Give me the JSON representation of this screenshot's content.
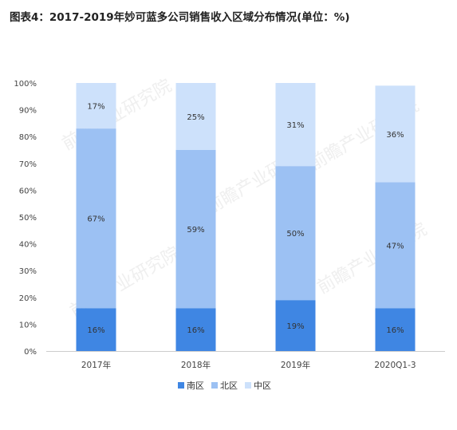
{
  "title": "图表4：2017-2019年妙可蓝多公司销售收入区域分布情况(单位：%)",
  "watermark": "前瞻产业研究院",
  "colors": {
    "南区": "#3f86e3",
    "北区": "#9cc1f3",
    "中区": "#cde1fb",
    "axis": "#cccccc",
    "text": "#444444"
  },
  "chart_data": {
    "type": "bar",
    "stacked": true,
    "title": "图表4：2017-2019年妙可蓝多公司销售收入区域分布情况(单位：%)",
    "categories": [
      "2017年",
      "2018年",
      "2019年",
      "2020Q1-3"
    ],
    "series": [
      {
        "name": "南区",
        "values": [
          16,
          16,
          19,
          16
        ]
      },
      {
        "name": "北区",
        "values": [
          67,
          59,
          50,
          47
        ]
      },
      {
        "name": "中区",
        "values": [
          17,
          25,
          31,
          36
        ]
      }
    ],
    "data_labels": [
      [
        "16%",
        "16%",
        "19%",
        "16%"
      ],
      [
        "67%",
        "59%",
        "50%",
        "47%"
      ],
      [
        "17%",
        "25%",
        "31%",
        "36%"
      ]
    ],
    "yticks": [
      "0%",
      "10%",
      "20%",
      "30%",
      "40%",
      "50%",
      "60%",
      "70%",
      "80%",
      "90%",
      "100%"
    ],
    "ylim": [
      0,
      100
    ],
    "legend_position": "bottom",
    "grid": false
  }
}
